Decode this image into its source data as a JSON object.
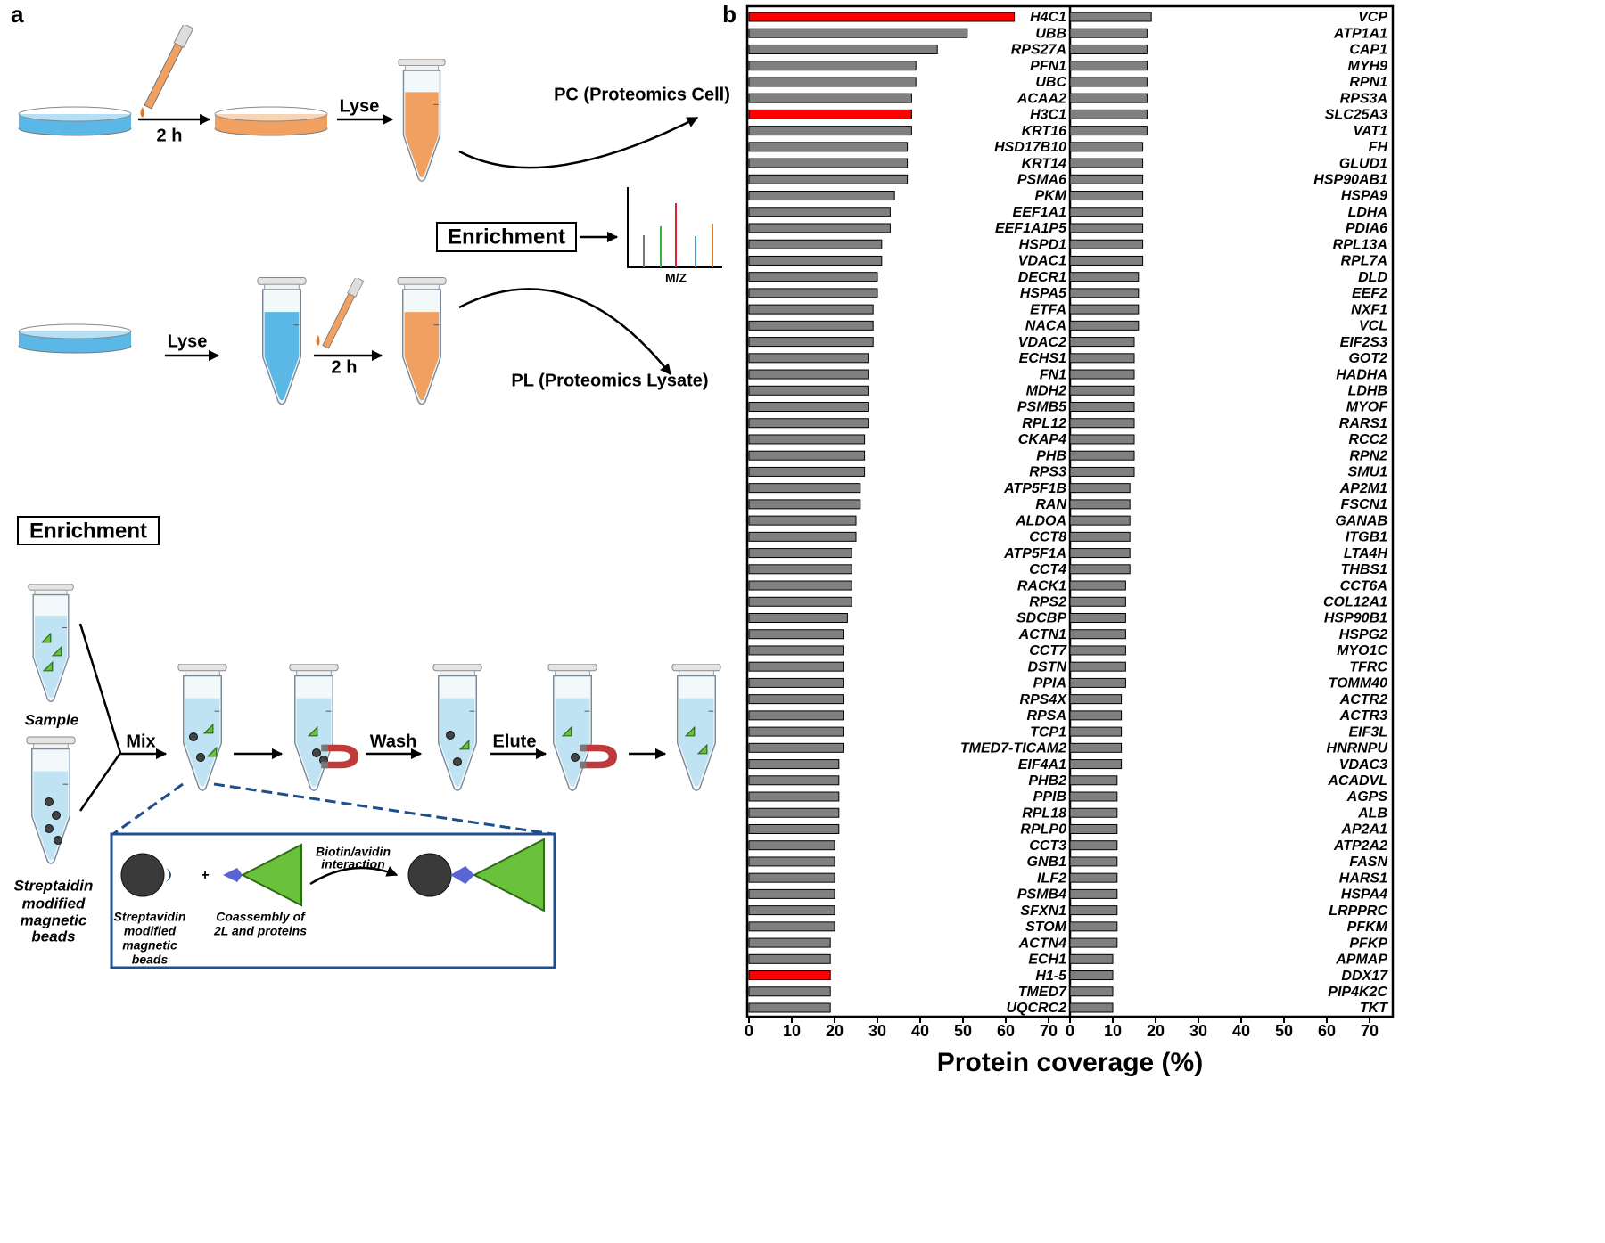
{
  "diagram": {
    "panel_label": "a",
    "top_row": {
      "time": "2 h",
      "lyse": "Lyse",
      "output": "PC (Proteomics Cell)"
    },
    "enrichment_step": "Enrichment",
    "spectrum_axis": "M/Z",
    "bottom_row": {
      "lyse": "Lyse",
      "time": "2 h",
      "output": "PL (Proteomics Lysate)"
    },
    "enrichment_section": {
      "title": "Enrichment",
      "sample": "Sample",
      "beads": [
        "Streptaidin",
        "modified",
        "magnetic",
        "beads"
      ],
      "steps": [
        "Mix",
        "Wash",
        "Elute"
      ],
      "inset": {
        "interaction": [
          "Biotin/avidin",
          "interaction"
        ],
        "plus": "+",
        "beads": [
          "Streptavidin",
          "modified",
          "magnetic",
          "beads"
        ],
        "coassembly": [
          "Coassembly of",
          "2L and proteins"
        ]
      }
    }
  },
  "chart_data": [
    {
      "type": "barh",
      "panel_label": "b",
      "xlabel": "Protein coverage (%)",
      "categories": [
        "H4C1",
        "UBB",
        "RPS27A",
        "PFN1",
        "UBC",
        "ACAA2",
        "H3C1",
        "KRT16",
        "HSD17B10",
        "KRT14",
        "PSMA6",
        "PKM",
        "EEF1A1",
        "EEF1A1P5",
        "HSPD1",
        "VDAC1",
        "DECR1",
        "HSPA5",
        "ETFA",
        "NACA",
        "VDAC2",
        "ECHS1",
        "FN1",
        "MDH2",
        "PSMB5",
        "RPL12",
        "CKAP4",
        "PHB",
        "RPS3",
        "ATP5F1B",
        "RAN",
        "ALDOA",
        "CCT8",
        "ATP5F1A",
        "CCT4",
        "RACK1",
        "RPS2",
        "SDCBP",
        "ACTN1",
        "CCT7",
        "DSTN",
        "PPIA",
        "RPS4X",
        "RPSA",
        "TCP1",
        "TMED7-TICAM2",
        "EIF4A1",
        "PHB2",
        "PPIB",
        "RPL18",
        "RPLP0",
        "CCT3",
        "GNB1",
        "ILF2",
        "PSMB4",
        "SFXN1",
        "STOM",
        "ACTN4",
        "ECH1",
        "H1-5",
        "TMED7",
        "UQCRC2"
      ],
      "values": [
        62,
        51,
        44,
        39,
        39,
        38,
        38,
        38,
        37,
        37,
        37,
        34,
        33,
        33,
        31,
        31,
        30,
        30,
        29,
        29,
        29,
        28,
        28,
        28,
        28,
        28,
        27,
        27,
        27,
        26,
        26,
        25,
        25,
        24,
        24,
        24,
        24,
        23,
        22,
        22,
        22,
        22,
        22,
        22,
        22,
        22,
        21,
        21,
        21,
        21,
        21,
        20,
        20,
        20,
        20,
        20,
        20,
        19,
        19,
        19,
        19,
        19
      ],
      "colors": [
        "#ff0000",
        "#808080",
        "#808080",
        "#808080",
        "#808080",
        "#808080",
        "#ff0000",
        "#808080",
        "#808080",
        "#808080",
        "#808080",
        "#808080",
        "#808080",
        "#808080",
        "#808080",
        "#808080",
        "#808080",
        "#808080",
        "#808080",
        "#808080",
        "#808080",
        "#808080",
        "#808080",
        "#808080",
        "#808080",
        "#808080",
        "#808080",
        "#808080",
        "#808080",
        "#808080",
        "#808080",
        "#808080",
        "#808080",
        "#808080",
        "#808080",
        "#808080",
        "#808080",
        "#808080",
        "#808080",
        "#808080",
        "#808080",
        "#808080",
        "#808080",
        "#808080",
        "#808080",
        "#808080",
        "#808080",
        "#808080",
        "#808080",
        "#808080",
        "#808080",
        "#808080",
        "#808080",
        "#808080",
        "#808080",
        "#808080",
        "#808080",
        "#808080",
        "#808080",
        "#ff0000",
        "#808080",
        "#808080"
      ],
      "label_colors": [
        "#ff0000",
        "#000000",
        "#000000",
        "#000000",
        "#000000",
        "#000000",
        "#ff0000",
        "#000000",
        "#000000",
        "#000000",
        "#000000",
        "#000000",
        "#000000",
        "#000000",
        "#000000",
        "#000000",
        "#000000",
        "#000000",
        "#000000",
        "#000000",
        "#000000",
        "#000000",
        "#000000",
        "#000000",
        "#000000",
        "#000000",
        "#000000",
        "#000000",
        "#000000",
        "#000000",
        "#000000",
        "#000000",
        "#000000",
        "#000000",
        "#000000",
        "#000000",
        "#000000",
        "#000000",
        "#000000",
        "#000000",
        "#000000",
        "#000000",
        "#000000",
        "#000000",
        "#000000",
        "#000000",
        "#000000",
        "#000000",
        "#000000",
        "#000000",
        "#000000",
        "#000000",
        "#000000",
        "#000000",
        "#000000",
        "#000000",
        "#000000",
        "#000000",
        "#000000",
        "#ff0000",
        "#000000",
        "#000000"
      ],
      "xlim": [
        0,
        75
      ],
      "xticks": [
        0,
        10,
        20,
        30,
        40,
        50,
        60,
        70
      ]
    },
    {
      "type": "barh",
      "categories": [
        "VCP",
        "ATP1A1",
        "CAP1",
        "MYH9",
        "RPN1",
        "RPS3A",
        "SLC25A3",
        "VAT1",
        "FH",
        "GLUD1",
        "HSP90AB1",
        "HSPA9",
        "LDHA",
        "PDIA6",
        "RPL13A",
        "RPL7A",
        "DLD",
        "EEF2",
        "NXF1",
        "VCL",
        "EIF2S3",
        "GOT2",
        "HADHA",
        "LDHB",
        "MYOF",
        "RARS1",
        "RCC2",
        "RPN2",
        "SMU1",
        "AP2M1",
        "FSCN1",
        "GANAB",
        "ITGB1",
        "LTA4H",
        "THBS1",
        "CCT6A",
        "COL12A1",
        "HSP90B1",
        "HSPG2",
        "MYO1C",
        "TFRC",
        "TOMM40",
        "ACTR2",
        "ACTR3",
        "EIF3L",
        "HNRNPU",
        "VDAC3",
        "ACADVL",
        "AGPS",
        "ALB",
        "AP2A1",
        "ATP2A2",
        "FASN",
        "HARS1",
        "HSPA4",
        "LRPPRC",
        "PFKM",
        "PFKP",
        "APMAP",
        "DDX17",
        "PIP4K2C",
        "TKT"
      ],
      "values": [
        19,
        18,
        18,
        18,
        18,
        18,
        18,
        18,
        17,
        17,
        17,
        17,
        17,
        17,
        17,
        17,
        16,
        16,
        16,
        16,
        15,
        15,
        15,
        15,
        15,
        15,
        15,
        15,
        15,
        14,
        14,
        14,
        14,
        14,
        14,
        13,
        13,
        13,
        13,
        13,
        13,
        13,
        12,
        12,
        12,
        12,
        12,
        11,
        11,
        11,
        11,
        11,
        11,
        11,
        11,
        11,
        11,
        11,
        10,
        10,
        10,
        10
      ],
      "colors": [
        "#808080",
        "#808080",
        "#808080",
        "#808080",
        "#808080",
        "#808080",
        "#808080",
        "#808080",
        "#808080",
        "#808080",
        "#808080",
        "#808080",
        "#808080",
        "#808080",
        "#808080",
        "#808080",
        "#808080",
        "#808080",
        "#808080",
        "#808080",
        "#808080",
        "#808080",
        "#808080",
        "#808080",
        "#808080",
        "#808080",
        "#808080",
        "#808080",
        "#808080",
        "#808080",
        "#808080",
        "#808080",
        "#808080",
        "#808080",
        "#808080",
        "#808080",
        "#808080",
        "#808080",
        "#808080",
        "#808080",
        "#808080",
        "#808080",
        "#808080",
        "#808080",
        "#808080",
        "#808080",
        "#808080",
        "#808080",
        "#808080",
        "#808080",
        "#808080",
        "#808080",
        "#808080",
        "#808080",
        "#808080",
        "#808080",
        "#808080",
        "#808080",
        "#808080",
        "#808080",
        "#808080",
        "#808080"
      ],
      "label_colors": [
        "#000000",
        "#000000",
        "#000000",
        "#000000",
        "#000000",
        "#000000",
        "#000000",
        "#000000",
        "#000000",
        "#000000",
        "#000000",
        "#000000",
        "#000000",
        "#000000",
        "#000000",
        "#000000",
        "#000000",
        "#000000",
        "#000000",
        "#000000",
        "#000000",
        "#000000",
        "#000000",
        "#000000",
        "#000000",
        "#000000",
        "#000000",
        "#000000",
        "#000000",
        "#000000",
        "#000000",
        "#000000",
        "#000000",
        "#000000",
        "#000000",
        "#000000",
        "#000000",
        "#000000",
        "#000000",
        "#000000",
        "#000000",
        "#000000",
        "#000000",
        "#000000",
        "#000000",
        "#000000",
        "#000000",
        "#000000",
        "#000000",
        "#000000",
        "#000000",
        "#000000",
        "#000000",
        "#000000",
        "#000000",
        "#000000",
        "#000000",
        "#000000",
        "#000000",
        "#000000",
        "#000000",
        "#000000"
      ],
      "xlim": [
        0,
        75
      ],
      "xticks": [
        0,
        10,
        20,
        30,
        40,
        50,
        60,
        70
      ]
    }
  ]
}
